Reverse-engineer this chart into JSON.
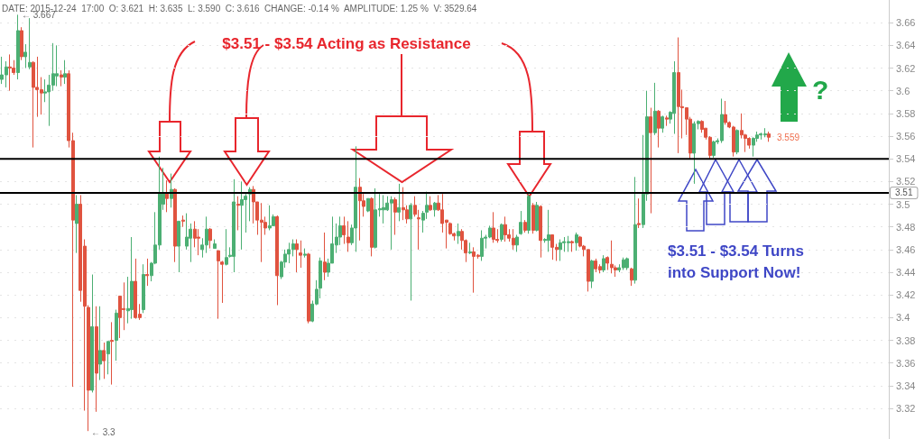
{
  "chart_data": {
    "type": "candlestick",
    "tick_labels": "y",
    "grid": "y",
    "colors": [
      "#4caf73",
      "#4caf73",
      "#e0533f",
      "#e0533f",
      "#4caf73",
      "#e0533f",
      "#4caf73",
      "#4caf73",
      "#e0533f",
      "#e0533f",
      "#e0533f",
      "#4caf73",
      "#4caf73",
      "#4caf73",
      "#4caf73",
      "#e0533f",
      "#4caf73",
      "#e0533f",
      "#e0533f",
      "#4caf73",
      "#e0533f",
      "#e0533f",
      "#e0533f",
      "#4caf73",
      "#e0533f",
      "#4caf73",
      "#e0533f",
      "#4caf73",
      "#e0533f",
      "#4caf73",
      "#e0533f",
      "#e0533f",
      "#4caf73",
      "#4caf73",
      "#e0533f",
      "#e0533f",
      "#4caf73",
      "#e0533f",
      "#4caf73",
      "#4caf73",
      "#4caf73",
      "#4caf73",
      "#e0533f",
      "#4caf73",
      "#e0533f",
      "#4caf73",
      "#e0533f",
      "#4caf73",
      "#4caf73",
      "#e0533f",
      "#e0533f",
      "#4caf73",
      "#4caf73",
      "#e0533f",
      "#4caf73",
      "#e0533f",
      "#e0533f",
      "#4caf73",
      "#4caf73",
      "#4caf73",
      "#e0533f",
      "#4caf73",
      "#4caf73",
      "#4caf73",
      "#e0533f",
      "#e0533f",
      "#e0533f",
      "#e0533f",
      "#4caf73",
      "#4caf73",
      "#e0533f",
      "#4caf73",
      "#4caf73",
      "#4caf73",
      "#4caf73",
      "#e0533f",
      "#e0533f",
      "#4caf73",
      "#e0533f",
      "#4caf73",
      "#4caf73",
      "#4caf73",
      "#e0533f",
      "#4caf73",
      "#4caf73",
      "#4caf73",
      "#4caf73",
      "#e0533f",
      "#e0533f",
      "#4caf73",
      "#4caf73",
      "#e0533f",
      "#e0533f",
      "#4caf73",
      "#e0533f",
      "#4caf73",
      "#4caf73",
      "#4caf73",
      "#4caf73",
      "#4caf73",
      "#e0533f",
      "#4caf73",
      "#e0533f",
      "#e0533f",
      "#4caf73",
      "#e0533f",
      "#e0533f",
      "#4caf73",
      "#4caf73",
      "#e0533f",
      "#4caf73",
      "#e0533f",
      "#e0533f",
      "#e0533f",
      "#e0533f",
      "#e0533f",
      "#4caf73",
      "#e0533f",
      "#e0533f",
      "#4caf73",
      "#e0533f",
      "#e0533f",
      "#4caf73",
      "#4caf73",
      "#4caf73",
      "#e0533f",
      "#e0533f",
      "#4caf73",
      "#e0533f",
      "#e0533f",
      "#e0533f",
      "#4caf73",
      "#4caf73",
      "#e0533f",
      "#4caf73",
      "#e0533f",
      "#4caf73",
      "#e0533f",
      "#4caf73",
      "#4caf73",
      "#e0533f",
      "#e0533f",
      "#4caf73",
      "#4caf73",
      "#4caf73",
      "#e0533f",
      "#4caf73",
      "#e0533f",
      "#e0533f",
      "#e0533f",
      "#4caf73",
      "#e0533f",
      "#e0533f",
      "#4caf73",
      "#e0533f",
      "#e0533f",
      "#e0533f",
      "#4caf73",
      "#4caf73",
      "#4caf73",
      "#e0533f",
      "#4caf73",
      "#e0533f",
      "#4caf73",
      "#4caf73",
      "#e0533f",
      "#4caf73",
      "#e0533f",
      "#4caf73",
      "#e0533f",
      "#4caf73",
      "#4caf73",
      "#e0533f",
      "#e0533f",
      "#e0533f",
      "#e0533f",
      "#4caf73",
      "#4caf73",
      "#e0533f",
      "#e0533f",
      "#e0533f",
      "#4caf73",
      "#4caf73",
      "#4caf73",
      "#e0533f",
      "#e0533f",
      "#e0533f",
      "#4caf73",
      "#e0533f",
      "#e0533f",
      "#e0533f",
      "#4caf73",
      "#4caf73",
      "#4caf73",
      "#4caf73",
      "#e0533f",
      null,
      null,
      null,
      null,
      null,
      null,
      null,
      null,
      null,
      null,
      null,
      null,
      null,
      null,
      null,
      null,
      null,
      null,
      null,
      null,
      null,
      null,
      null,
      null,
      null,
      null,
      null,
      null,
      null,
      null
    ],
    "ylim": [
      3.293,
      3.68
    ],
    "yticks": [
      3.32,
      3.34,
      3.36,
      3.38,
      3.4,
      3.42,
      3.44,
      3.46,
      3.48,
      3.5,
      3.52,
      3.54,
      3.56,
      3.58,
      3.6,
      3.62,
      3.64,
      3.66
    ],
    "ref_lines": [
      {
        "axis": "y",
        "value": 3.54,
        "color": "#000000"
      },
      {
        "axis": "y",
        "value": 3.51,
        "label": "3.51",
        "color": "#000000"
      }
    ],
    "annotations": [
      "DATE: 2015-12-24  17:00  O: 3.621  H: 3.635  L: 3.590  C: 3.616  CHANGE: -0.14 %  AMPLITUDE: 1.25 %  V: 3529.64",
      "$3.51 - $3.54 Acting as Resistance",
      "$3.51 - $3.54 Turns into Support Now!",
      "?",
      "← 3.667",
      "← 3.3",
      "3.559"
    ],
    "categories": [
      null,
      null,
      null,
      null,
      null,
      null,
      null,
      null,
      null,
      null,
      null,
      null,
      null,
      null,
      null,
      null,
      null,
      null,
      null,
      null,
      null,
      null,
      null,
      null,
      null,
      null,
      null,
      null,
      null,
      null,
      null,
      null,
      null,
      null,
      null,
      null,
      null,
      null,
      null,
      null,
      null,
      null,
      null,
      null,
      null,
      null,
      null,
      null,
      null,
      null,
      null,
      null,
      null,
      null,
      null,
      null,
      null,
      null,
      null,
      null,
      null,
      null,
      null,
      null,
      null,
      null,
      null,
      null,
      null,
      null,
      null,
      null,
      null,
      null,
      null,
      null,
      null,
      null,
      null,
      null,
      null,
      null,
      null,
      null,
      null,
      null,
      null,
      null,
      null,
      null,
      null,
      null,
      null,
      null,
      null,
      null,
      null,
      null,
      null,
      null,
      null,
      null,
      null,
      null,
      null,
      null,
      null,
      null,
      null,
      null,
      null,
      null,
      null,
      null,
      null,
      null,
      null,
      null,
      null,
      null,
      null,
      null,
      null,
      null,
      null,
      null,
      null,
      null,
      null,
      null,
      null,
      null,
      null,
      null,
      null,
      null,
      null,
      null,
      null,
      null,
      null,
      null,
      null,
      null,
      null,
      null,
      null,
      null,
      null,
      null,
      null,
      null,
      null,
      null,
      null,
      null,
      null,
      null,
      null,
      null,
      null,
      null,
      null,
      null,
      null,
      null,
      null,
      null,
      null,
      null,
      null,
      null,
      null,
      null,
      null,
      null,
      null,
      null,
      null,
      null,
      null,
      null,
      null,
      null,
      null,
      null,
      null,
      null,
      null,
      null,
      null,
      null,
      null,
      null,
      null,
      null,
      null,
      null,
      null,
      null,
      null,
      null,
      null,
      null,
      null,
      null,
      null,
      null,
      null,
      null,
      null,
      null,
      null,
      null,
      null,
      null,
      null,
      null,
      null,
      null,
      null,
      null,
      null,
      null,
      null,
      null
    ],
    "ohlc": [
      [
        3.61,
        3.63,
        3.606,
        3.614
      ],
      [
        3.614,
        3.626,
        3.603,
        3.621
      ],
      [
        3.621,
        3.632,
        3.6,
        3.62
      ],
      [
        3.62,
        3.627,
        3.614,
        3.616
      ],
      [
        3.616,
        3.667,
        3.61,
        3.653
      ],
      [
        3.653,
        3.656,
        3.627,
        3.63
      ],
      [
        3.63,
        3.641,
        3.62,
        3.634
      ],
      [
        3.621,
        3.664,
        3.619,
        3.625
      ],
      [
        3.625,
        3.626,
        3.55,
        3.603
      ],
      [
        3.603,
        3.63,
        3.577,
        3.601
      ],
      [
        3.601,
        3.612,
        3.579,
        3.598
      ],
      [
        3.598,
        3.61,
        3.59,
        3.599
      ],
      [
        3.599,
        3.614,
        3.569,
        3.605
      ],
      [
        3.605,
        3.642,
        3.6,
        3.615
      ],
      [
        3.613,
        3.64,
        3.604,
        3.615
      ],
      [
        3.614,
        3.618,
        3.604,
        3.612
      ],
      [
        3.612,
        3.627,
        3.606,
        3.615
      ],
      [
        3.615,
        3.618,
        3.55,
        3.556
      ],
      [
        3.556,
        3.563,
        3.339,
        3.486
      ],
      [
        3.483,
        3.508,
        3.457,
        3.5
      ],
      [
        3.5,
        3.508,
        3.414,
        3.424
      ],
      [
        3.463,
        3.469,
        3.318,
        3.41
      ],
      [
        3.409,
        3.411,
        3.3,
        3.336
      ],
      [
        3.336,
        3.438,
        3.334,
        3.392
      ],
      [
        3.392,
        3.41,
        3.317,
        3.351
      ],
      [
        3.359,
        3.41,
        3.345,
        3.371
      ],
      [
        3.371,
        3.378,
        3.346,
        3.362
      ],
      [
        3.368,
        3.379,
        3.35,
        3.379
      ],
      [
        3.38,
        3.396,
        3.341,
        3.379
      ],
      [
        3.38,
        3.407,
        3.362,
        3.404
      ],
      [
        3.419,
        3.419,
        3.382,
        3.4
      ],
      [
        3.408,
        3.431,
        3.389,
        3.407
      ],
      [
        3.406,
        3.436,
        3.395,
        3.408
      ],
      [
        3.407,
        3.471,
        3.399,
        3.432
      ],
      [
        3.432,
        3.452,
        3.399,
        3.4
      ],
      [
        3.403,
        3.412,
        3.398,
        3.4
      ],
      [
        3.407,
        3.447,
        3.404,
        3.438
      ],
      [
        3.438,
        3.452,
        3.428,
        3.437
      ],
      [
        3.437,
        3.449,
        3.432,
        3.448
      ],
      [
        3.448,
        3.493,
        3.447,
        3.464
      ],
      [
        3.464,
        3.542,
        3.46,
        3.51
      ],
      [
        3.5,
        3.532,
        3.495,
        3.51
      ],
      [
        3.51,
        3.521,
        3.493,
        3.505
      ],
      [
        3.505,
        3.527,
        3.497,
        3.513
      ],
      [
        3.513,
        3.514,
        3.449,
        3.463
      ],
      [
        3.463,
        3.485,
        3.44,
        3.485
      ],
      [
        3.486,
        3.49,
        3.48,
        3.485
      ],
      [
        3.463,
        3.492,
        3.46,
        3.471
      ],
      [
        3.47,
        3.483,
        3.449,
        3.478
      ],
      [
        3.478,
        3.485,
        3.462,
        3.47
      ],
      [
        3.471,
        3.478,
        3.455,
        3.47
      ],
      [
        3.46,
        3.47,
        3.453,
        3.464
      ],
      [
        3.464,
        3.489,
        3.457,
        3.478
      ],
      [
        3.478,
        3.479,
        3.461,
        3.468
      ],
      [
        3.461,
        3.469,
        3.461,
        3.465
      ],
      [
        3.459,
        3.459,
        3.399,
        3.45
      ],
      [
        3.449,
        3.45,
        3.413,
        3.447
      ],
      [
        3.447,
        3.478,
        3.446,
        3.453
      ],
      [
        3.454,
        3.462,
        3.453,
        3.455
      ],
      [
        3.454,
        3.522,
        3.44,
        3.502
      ],
      [
        3.5,
        3.507,
        3.477,
        3.499
      ],
      [
        3.499,
        3.52,
        3.46,
        3.504
      ],
      [
        3.504,
        3.509,
        3.475,
        3.507
      ],
      [
        3.509,
        3.515,
        3.485,
        3.513
      ],
      [
        3.513,
        3.516,
        3.483,
        3.502
      ],
      [
        3.502,
        3.502,
        3.473,
        3.486
      ],
      [
        3.486,
        3.501,
        3.449,
        3.484
      ],
      [
        3.484,
        3.489,
        3.473,
        3.479
      ],
      [
        3.479,
        3.499,
        3.477,
        3.481
      ],
      [
        3.481,
        3.491,
        3.481,
        3.489
      ],
      [
        3.489,
        3.49,
        3.411,
        3.437
      ],
      [
        3.436,
        3.45,
        3.434,
        3.449
      ],
      [
        3.449,
        3.46,
        3.444,
        3.456
      ],
      [
        3.456,
        3.466,
        3.448,
        3.46
      ],
      [
        3.46,
        3.469,
        3.454,
        3.465
      ],
      [
        3.465,
        3.469,
        3.44,
        3.46
      ],
      [
        3.457,
        3.468,
        3.444,
        3.455
      ],
      [
        3.455,
        3.461,
        3.453,
        3.456
      ],
      [
        3.456,
        3.457,
        3.395,
        3.397
      ],
      [
        3.397,
        3.415,
        3.396,
        3.412
      ],
      [
        3.412,
        3.433,
        3.411,
        3.425
      ],
      [
        3.426,
        3.453,
        3.417,
        3.45
      ],
      [
        3.449,
        3.475,
        3.433,
        3.44
      ],
      [
        3.44,
        3.452,
        3.436,
        3.448
      ],
      [
        3.448,
        3.489,
        3.448,
        3.465
      ],
      [
        3.464,
        3.483,
        3.457,
        3.471
      ],
      [
        3.471,
        3.489,
        3.464,
        3.481
      ],
      [
        3.481,
        3.489,
        3.465,
        3.473
      ],
      [
        3.471,
        3.485,
        3.458,
        3.466
      ],
      [
        3.466,
        3.482,
        3.464,
        3.479
      ],
      [
        3.479,
        3.551,
        3.458,
        3.515
      ],
      [
        3.515,
        3.523,
        3.468,
        3.503
      ],
      [
        3.503,
        3.509,
        3.489,
        3.498
      ],
      [
        3.494,
        3.505,
        3.493,
        3.505
      ],
      [
        3.505,
        3.506,
        3.454,
        3.462
      ],
      [
        3.462,
        3.514,
        3.461,
        3.495
      ],
      [
        3.495,
        3.509,
        3.489,
        3.496
      ],
      [
        3.495,
        3.508,
        3.483,
        3.497
      ],
      [
        3.495,
        3.507,
        3.494,
        3.501
      ],
      [
        3.501,
        3.507,
        3.46,
        3.504
      ],
      [
        3.504,
        3.506,
        3.473,
        3.493
      ],
      [
        3.493,
        3.518,
        3.485,
        3.497
      ],
      [
        3.497,
        3.515,
        3.486,
        3.495
      ],
      [
        3.495,
        3.499,
        3.483,
        3.487
      ],
      [
        3.487,
        3.501,
        3.415,
        3.499
      ],
      [
        3.499,
        3.507,
        3.489,
        3.491
      ],
      [
        3.488,
        3.495,
        3.46,
        3.487
      ],
      [
        3.486,
        3.494,
        3.475,
        3.492
      ],
      [
        3.493,
        3.511,
        3.487,
        3.499
      ],
      [
        3.499,
        3.507,
        3.494,
        3.495
      ],
      [
        3.495,
        3.502,
        3.489,
        3.501
      ],
      [
        3.501,
        3.508,
        3.494,
        3.495
      ],
      [
        3.495,
        3.509,
        3.475,
        3.483
      ],
      [
        3.486,
        3.486,
        3.461,
        3.484
      ],
      [
        3.483,
        3.484,
        3.473,
        3.474
      ],
      [
        3.474,
        3.475,
        3.468,
        3.472
      ],
      [
        3.472,
        3.483,
        3.465,
        3.476
      ],
      [
        3.476,
        3.478,
        3.46,
        3.468
      ],
      [
        3.468,
        3.469,
        3.449,
        3.457
      ],
      [
        3.457,
        3.466,
        3.456,
        3.458
      ],
      [
        3.458,
        3.462,
        3.422,
        3.454
      ],
      [
        3.455,
        3.456,
        3.452,
        3.454
      ],
      [
        3.454,
        3.477,
        3.45,
        3.47
      ],
      [
        3.47,
        3.473,
        3.461,
        3.471
      ],
      [
        3.471,
        3.481,
        3.47,
        3.479
      ],
      [
        3.479,
        3.493,
        3.466,
        3.469
      ],
      [
        3.469,
        3.478,
        3.466,
        3.468
      ],
      [
        3.469,
        3.483,
        3.467,
        3.482
      ],
      [
        3.482,
        3.489,
        3.467,
        3.473
      ],
      [
        3.473,
        3.478,
        3.467,
        3.47
      ],
      [
        3.47,
        3.478,
        3.46,
        3.464
      ],
      [
        3.464,
        3.473,
        3.458,
        3.471
      ],
      [
        3.474,
        3.494,
        3.473,
        3.484
      ],
      [
        3.484,
        3.486,
        3.475,
        3.477
      ],
      [
        3.477,
        3.509,
        3.474,
        3.507
      ],
      [
        3.499,
        3.501,
        3.474,
        3.477
      ],
      [
        3.477,
        3.502,
        3.476,
        3.499
      ],
      [
        3.498,
        3.499,
        3.453,
        3.468
      ],
      [
        3.468,
        3.47,
        3.466,
        3.469
      ],
      [
        3.468,
        3.495,
        3.458,
        3.473
      ],
      [
        3.473,
        3.473,
        3.451,
        3.462
      ],
      [
        3.462,
        3.465,
        3.45,
        3.46
      ],
      [
        3.46,
        3.469,
        3.45,
        3.466
      ],
      [
        3.466,
        3.471,
        3.458,
        3.467
      ],
      [
        3.466,
        3.472,
        3.458,
        3.467
      ],
      [
        3.467,
        3.468,
        3.458,
        3.466
      ],
      [
        3.466,
        3.475,
        3.459,
        3.473
      ],
      [
        3.471,
        3.472,
        3.462,
        3.463
      ],
      [
        3.463,
        3.464,
        3.454,
        3.46
      ],
      [
        3.46,
        3.46,
        3.423,
        3.432
      ],
      [
        3.432,
        3.451,
        3.426,
        3.45
      ],
      [
        3.45,
        3.452,
        3.44,
        3.443
      ],
      [
        3.445,
        3.447,
        3.439,
        3.442
      ],
      [
        3.442,
        3.455,
        3.44,
        3.452
      ],
      [
        3.453,
        3.454,
        3.442,
        3.448
      ],
      [
        3.447,
        3.468,
        3.439,
        3.444
      ],
      [
        3.444,
        3.446,
        3.436,
        3.442
      ],
      [
        3.442,
        3.447,
        3.44,
        3.444
      ],
      [
        3.444,
        3.453,
        3.442,
        3.451
      ],
      [
        3.444,
        3.453,
        3.442,
        3.452
      ],
      [
        3.443,
        3.444,
        3.428,
        3.433
      ],
      [
        3.433,
        3.524,
        3.43,
        3.482
      ],
      [
        3.483,
        3.505,
        3.479,
        3.482
      ],
      [
        3.482,
        3.561,
        3.479,
        3.509
      ],
      [
        3.509,
        3.6,
        3.503,
        3.577
      ],
      [
        3.577,
        3.585,
        3.492,
        3.563
      ],
      [
        3.563,
        3.607,
        3.561,
        3.582
      ],
      [
        3.582,
        3.583,
        3.55,
        3.567
      ],
      [
        3.567,
        3.578,
        3.563,
        3.577
      ],
      [
        3.576,
        3.578,
        3.569,
        3.575
      ],
      [
        3.575,
        3.582,
        3.571,
        3.581
      ],
      [
        3.58,
        3.626,
        3.562,
        3.616
      ],
      [
        3.616,
        3.647,
        3.545,
        3.586
      ],
      [
        3.586,
        3.601,
        3.558,
        3.585
      ],
      [
        3.585,
        3.585,
        3.561,
        3.575
      ],
      [
        3.575,
        3.577,
        3.54,
        3.545
      ],
      [
        3.545,
        3.573,
        3.518,
        3.571
      ],
      [
        3.571,
        3.574,
        3.566,
        3.573
      ],
      [
        3.573,
        3.574,
        3.563,
        3.566
      ],
      [
        3.567,
        3.567,
        3.557,
        3.559
      ],
      [
        3.559,
        3.56,
        3.54,
        3.543
      ],
      [
        3.543,
        3.556,
        3.541,
        3.555
      ],
      [
        3.555,
        3.558,
        3.553,
        3.556
      ],
      [
        3.556,
        3.593,
        3.554,
        3.579
      ],
      [
        3.579,
        3.591,
        3.57,
        3.572
      ],
      [
        3.572,
        3.573,
        3.567,
        3.568
      ],
      [
        3.568,
        3.569,
        3.542,
        3.546
      ],
      [
        3.546,
        3.566,
        3.544,
        3.565
      ],
      [
        3.565,
        3.58,
        3.558,
        3.561
      ],
      [
        3.561,
        3.562,
        3.546,
        3.558
      ],
      [
        3.558,
        3.559,
        3.549,
        3.552
      ],
      [
        3.552,
        3.559,
        3.542,
        3.558
      ],
      [
        3.558,
        3.564,
        3.555,
        3.561
      ],
      [
        3.561,
        3.563,
        3.557,
        3.562
      ],
      [
        3.561,
        3.567,
        3.559,
        3.562
      ],
      [
        3.562,
        3.564,
        3.555,
        3.559
      ],
      null,
      null,
      null,
      null,
      null,
      null,
      null,
      null,
      null,
      null,
      null,
      null,
      null,
      null,
      null,
      null,
      null,
      null,
      null,
      null,
      null,
      null,
      null,
      null,
      null,
      null,
      null,
      null,
      null,
      null
    ]
  }
}
